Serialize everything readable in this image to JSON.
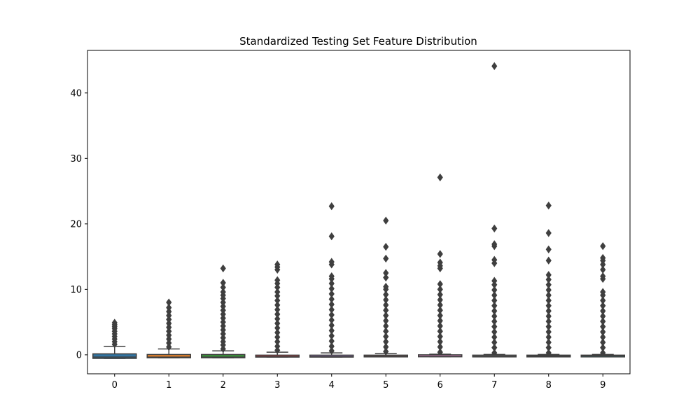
{
  "chart_data": {
    "type": "boxplot",
    "title": "Standardized Testing Set Feature Distribution",
    "xlabel": "",
    "ylabel": "",
    "ylim": [
      -2.9,
      46.5
    ],
    "yticks": [
      0,
      10,
      20,
      30,
      40
    ],
    "categories": [
      "0",
      "1",
      "2",
      "3",
      "4",
      "5",
      "6",
      "7",
      "8",
      "9"
    ],
    "colors": [
      "#3274a1",
      "#e1812c",
      "#3a923a",
      "#c03d3e",
      "#9372b2",
      "#845b53",
      "#d684bd",
      "#7f7f7f",
      "#a9aa35",
      "#2eb0c2"
    ],
    "boxes": [
      {
        "label": "0",
        "whislo": -0.55,
        "q1": -0.55,
        "med": -0.35,
        "q3": 0.15,
        "whishi": 1.3,
        "outliers": [
          1.6,
          2.0,
          2.4,
          2.8,
          3.2,
          3.6,
          4.0,
          4.3,
          4.6,
          4.9
        ]
      },
      {
        "label": "1",
        "whislo": -0.45,
        "q1": -0.45,
        "med": -0.35,
        "q3": 0.05,
        "whishi": 0.9,
        "outliers": [
          1.2,
          1.8,
          2.4,
          3.0,
          3.6,
          4.2,
          4.8,
          5.4,
          6.0,
          6.6,
          7.2,
          8.0
        ]
      },
      {
        "label": "2",
        "whislo": -0.45,
        "q1": -0.45,
        "med": -0.35,
        "q3": 0.05,
        "whishi": 0.6,
        "outliers": [
          0.9,
          1.5,
          2.0,
          2.6,
          3.2,
          3.8,
          4.4,
          5.0,
          5.6,
          6.2,
          6.8,
          7.4,
          8.0,
          8.6,
          9.1,
          9.6,
          10.3,
          11.0,
          13.2
        ]
      },
      {
        "label": "3",
        "whislo": -0.35,
        "q1": -0.35,
        "med": -0.3,
        "q3": -0.05,
        "whishi": 0.4,
        "outliers": [
          0.7,
          1.3,
          2.0,
          2.7,
          3.4,
          4.1,
          4.8,
          5.5,
          6.2,
          6.9,
          7.6,
          8.3,
          9.0,
          9.6,
          10.3,
          10.9,
          11.4,
          13.0,
          13.4,
          13.8
        ]
      },
      {
        "label": "4",
        "whislo": -0.35,
        "q1": -0.35,
        "med": -0.3,
        "q3": -0.05,
        "whishi": 0.3,
        "outliers": [
          0.6,
          1.3,
          2.1,
          2.9,
          3.7,
          4.5,
          5.3,
          6.1,
          6.9,
          7.7,
          8.5,
          9.3,
          10.1,
          10.9,
          11.6,
          12.0,
          13.8,
          14.2,
          18.1,
          22.7
        ]
      },
      {
        "label": "5",
        "whislo": -0.3,
        "q1": -0.3,
        "med": -0.25,
        "q3": -0.05,
        "whishi": 0.2,
        "outliers": [
          0.5,
          1.2,
          2.0,
          2.8,
          3.6,
          4.4,
          5.2,
          6.0,
          6.8,
          7.6,
          8.4,
          9.2,
          10.0,
          10.4,
          11.8,
          12.5,
          14.7,
          16.5,
          20.5
        ]
      },
      {
        "label": "6",
        "whislo": -0.3,
        "q1": -0.3,
        "med": -0.25,
        "q3": 0.0,
        "whishi": 0.1,
        "outliers": [
          0.4,
          1.2,
          2.0,
          2.8,
          3.6,
          4.4,
          5.2,
          6.0,
          6.8,
          7.6,
          8.4,
          9.2,
          10.0,
          10.8,
          13.2,
          13.6,
          14.1,
          15.4,
          27.1
        ]
      },
      {
        "label": "7",
        "whislo": -0.3,
        "q1": -0.3,
        "med": -0.25,
        "q3": -0.05,
        "whishi": 0.05,
        "outliers": [
          0.3,
          1.1,
          1.9,
          2.7,
          3.5,
          4.3,
          5.1,
          5.9,
          6.7,
          7.5,
          8.3,
          9.1,
          9.9,
          10.7,
          11.3,
          14.0,
          14.5,
          16.6,
          16.9,
          19.3,
          44.1
        ]
      },
      {
        "label": "8",
        "whislo": -0.25,
        "q1": -0.25,
        "med": -0.2,
        "q3": -0.05,
        "whishi": 0.05,
        "outliers": [
          0.3,
          1.1,
          1.9,
          2.7,
          3.5,
          4.3,
          5.1,
          5.9,
          6.7,
          7.5,
          8.3,
          9.1,
          9.9,
          10.7,
          11.5,
          12.2,
          14.4,
          16.1,
          18.6,
          22.8
        ]
      },
      {
        "label": "9",
        "whislo": -0.25,
        "q1": -0.25,
        "med": -0.15,
        "q3": -0.05,
        "whishi": 0.05,
        "outliers": [
          0.3,
          1.1,
          1.9,
          2.7,
          3.5,
          4.3,
          5.1,
          5.9,
          6.7,
          7.5,
          8.3,
          9.1,
          9.6,
          11.6,
          12.0,
          13.0,
          13.8,
          14.4,
          14.8,
          16.6
        ]
      }
    ]
  }
}
